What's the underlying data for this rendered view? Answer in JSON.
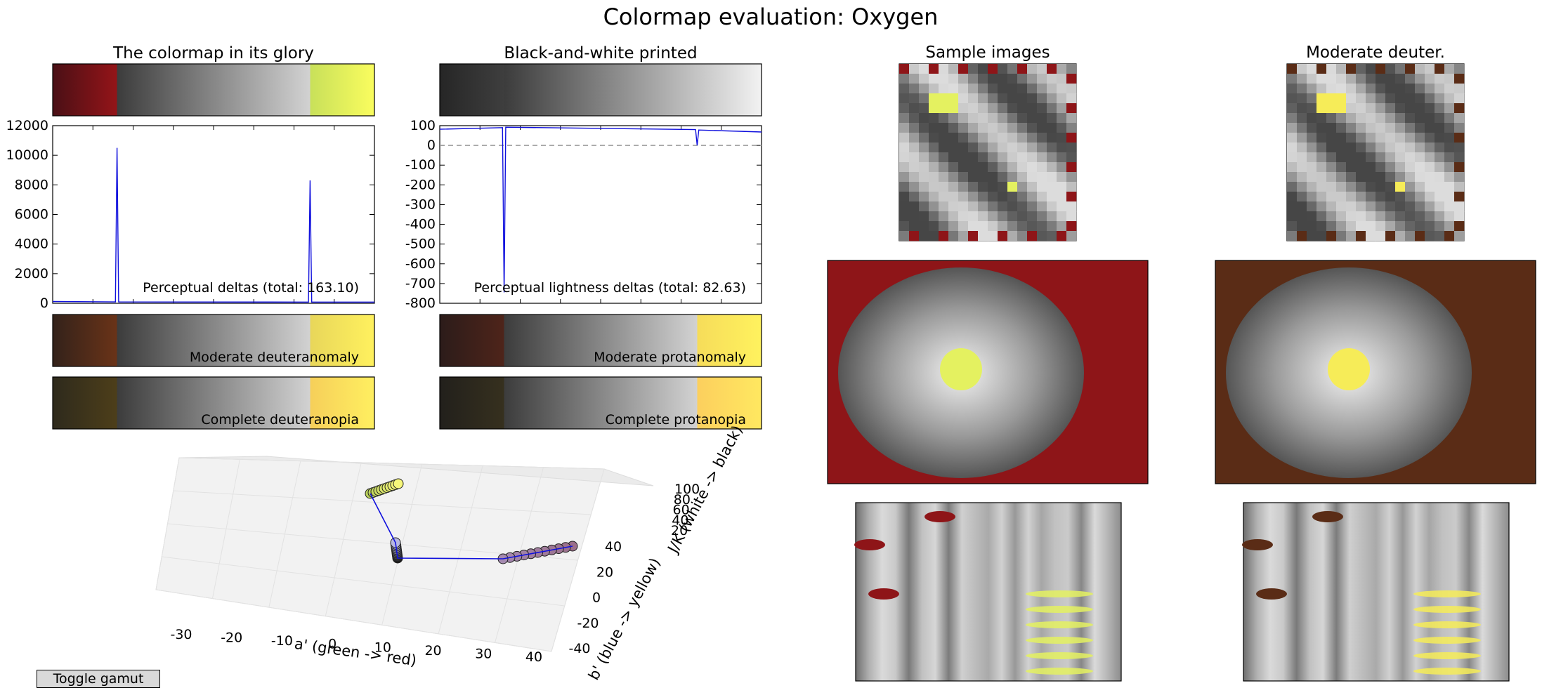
{
  "figure": {
    "title": "Colormap evaluation: Oxygen",
    "toggle_button": "Toggle gamut"
  },
  "colors": {
    "line": "#1010dd",
    "zero_line": "#999999",
    "dark_red": "#8b1216",
    "yellow": "#f9fb5e",
    "gray_dark": "#3c3c3c",
    "gray_light": "#cfcfcf"
  },
  "chart_data": [
    {
      "type": "colorbar",
      "id": "glory",
      "title": "The colormap in its glory",
      "stops": [
        {
          "pos": 0.0,
          "color": "#4a1016"
        },
        {
          "pos": 0.2,
          "color": "#941418"
        },
        {
          "pos": 0.2,
          "color": "#3c3c3c"
        },
        {
          "pos": 0.8,
          "color": "#d2d2d2"
        },
        {
          "pos": 0.8,
          "color": "#c8e05a"
        },
        {
          "pos": 1.0,
          "color": "#fafd5e"
        }
      ]
    },
    {
      "type": "line",
      "id": "perceptual-deltas",
      "annotation": "Perceptual deltas (total: 163.10)",
      "ylim": [
        0,
        12000
      ],
      "yticks": [
        "0",
        "2000",
        "4000",
        "6000",
        "8000",
        "10000",
        "12000"
      ],
      "tick_values": [
        0,
        2000,
        4000,
        6000,
        8000,
        10000,
        12000
      ],
      "x": [
        0,
        0.195,
        0.2,
        0.205,
        0.795,
        0.8,
        0.805,
        1
      ],
      "y": [
        120,
        90,
        10500,
        90,
        80,
        8300,
        80,
        80
      ]
    },
    {
      "type": "colorbar",
      "id": "deuteranomaly",
      "label": "Moderate deuteranomaly",
      "stops": [
        {
          "pos": 0.0,
          "color": "#33221a"
        },
        {
          "pos": 0.2,
          "color": "#6a3318"
        },
        {
          "pos": 0.2,
          "color": "#3c3c3c"
        },
        {
          "pos": 0.8,
          "color": "#d2d2d2"
        },
        {
          "pos": 0.8,
          "color": "#e8d65a"
        },
        {
          "pos": 1.0,
          "color": "#fff15e"
        }
      ]
    },
    {
      "type": "colorbar",
      "id": "deuteranopia",
      "label": "Complete deuteranopia",
      "stops": [
        {
          "pos": 0.0,
          "color": "#2e2a1c"
        },
        {
          "pos": 0.2,
          "color": "#4d3e1a"
        },
        {
          "pos": 0.2,
          "color": "#3c3c3c"
        },
        {
          "pos": 0.8,
          "color": "#d2d2d2"
        },
        {
          "pos": 0.8,
          "color": "#f6cf5a"
        },
        {
          "pos": 1.0,
          "color": "#ffef60"
        }
      ]
    },
    {
      "type": "colorbar",
      "id": "bw-printed",
      "title": "Black-and-white printed",
      "stops": [
        {
          "pos": 0.0,
          "color": "#262626"
        },
        {
          "pos": 0.2,
          "color": "#3e3e3e"
        },
        {
          "pos": 0.2,
          "color": "#3c3c3c"
        },
        {
          "pos": 1.0,
          "color": "#f2f2f2"
        }
      ]
    },
    {
      "type": "line",
      "id": "lightness-deltas",
      "annotation": "Perceptual lightness deltas (total: 82.63)",
      "ylim": [
        -800,
        100
      ],
      "yticks": [
        "-800",
        "-700",
        "-600",
        "-500",
        "-400",
        "-300",
        "-200",
        "-100",
        "0",
        "100"
      ],
      "tick_values": [
        -800,
        -700,
        -600,
        -500,
        -400,
        -300,
        -200,
        -100,
        0,
        100
      ],
      "zero_line": true,
      "x": [
        0,
        0.195,
        0.2,
        0.205,
        0.795,
        0.8,
        0.805,
        1
      ],
      "y": [
        82,
        90,
        -745,
        92,
        80,
        0,
        78,
        68
      ]
    },
    {
      "type": "colorbar",
      "id": "protanomaly",
      "label": "Moderate protanomaly",
      "stops": [
        {
          "pos": 0.0,
          "color": "#2c1c1a"
        },
        {
          "pos": 0.2,
          "color": "#4e241a"
        },
        {
          "pos": 0.2,
          "color": "#3c3c3c"
        },
        {
          "pos": 0.8,
          "color": "#d2d2d2"
        },
        {
          "pos": 0.8,
          "color": "#f6dc5a"
        },
        {
          "pos": 1.0,
          "color": "#fff25e"
        }
      ]
    },
    {
      "type": "colorbar",
      "id": "protanopia",
      "label": "Complete protanopia",
      "stops": [
        {
          "pos": 0.0,
          "color": "#22201c"
        },
        {
          "pos": 0.2,
          "color": "#36301e"
        },
        {
          "pos": 0.2,
          "color": "#3c3c3c"
        },
        {
          "pos": 0.8,
          "color": "#d2d2d2"
        },
        {
          "pos": 0.8,
          "color": "#fccf5e"
        },
        {
          "pos": 1.0,
          "color": "#ffe860"
        }
      ]
    },
    {
      "type": "scatter3d",
      "id": "colorspace-3d",
      "xlabel": "a' (green -> red)",
      "ylabel": "b' (blue -> yellow)",
      "zlabel": "J/K (white -> black)",
      "xticks": [
        "-30",
        "-20",
        "-10",
        "0",
        "10",
        "20",
        "30",
        "40"
      ],
      "yticks": [
        "-40",
        "-20",
        "0",
        "20",
        "40"
      ],
      "zticks": [
        "20",
        "40",
        "60",
        "80",
        "100"
      ],
      "segments": [
        {
          "name": "dark-red",
          "from": [
            36,
            2,
            15
          ],
          "to": [
            18,
            4,
            26
          ],
          "color_from": "#9b6f8a",
          "color_to": "#a58ab0"
        },
        {
          "name": "gray",
          "from": [
            0,
            0,
            35
          ],
          "to": [
            0,
            0,
            85
          ],
          "color_from": "#1a1a1a",
          "color_to": "#b8b8e0"
        },
        {
          "name": "yellow",
          "from": [
            -20,
            65,
            90
          ],
          "to": [
            -12,
            75,
            96
          ],
          "color_from": "#b9d15a",
          "color_to": "#f7f77a"
        }
      ]
    },
    {
      "type": "images",
      "id": "sample-images",
      "titles": [
        "Sample images",
        "Moderate deuter."
      ]
    }
  ]
}
